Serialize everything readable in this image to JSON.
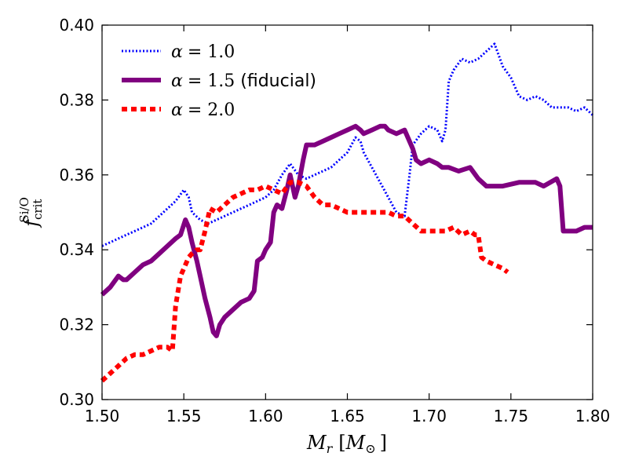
{
  "chart_data": {
    "type": "line",
    "title": "",
    "xlabel": "M_r [M_⊙]",
    "ylabel": "f_crit^Si/O",
    "xlim": [
      1.5,
      1.8
    ],
    "ylim": [
      0.3,
      0.4
    ],
    "xticks": [
      1.5,
      1.55,
      1.6,
      1.65,
      1.7,
      1.75,
      1.8
    ],
    "xtick_labels": [
      "1.50",
      "1.55",
      "1.60",
      "1.65",
      "1.70",
      "1.75",
      "1.80"
    ],
    "yticks": [
      0.3,
      0.32,
      0.34,
      0.36,
      0.38,
      0.4
    ],
    "ytick_labels": [
      "0.30",
      "0.32",
      "0.34",
      "0.36",
      "0.38",
      "0.40"
    ],
    "legend_position": "top-left",
    "grid": false,
    "series": [
      {
        "name": "α = 1.0",
        "color": "#0000ff",
        "style": "dotted",
        "points": [
          [
            1.5,
            0.341
          ],
          [
            1.505,
            0.342
          ],
          [
            1.51,
            0.343
          ],
          [
            1.515,
            0.344
          ],
          [
            1.52,
            0.345
          ],
          [
            1.525,
            0.346
          ],
          [
            1.53,
            0.347
          ],
          [
            1.535,
            0.349
          ],
          [
            1.54,
            0.351
          ],
          [
            1.545,
            0.353
          ],
          [
            1.55,
            0.356
          ],
          [
            1.553,
            0.354
          ],
          [
            1.555,
            0.35
          ],
          [
            1.56,
            0.348
          ],
          [
            1.565,
            0.347
          ],
          [
            1.57,
            0.348
          ],
          [
            1.575,
            0.349
          ],
          [
            1.58,
            0.35
          ],
          [
            1.585,
            0.351
          ],
          [
            1.59,
            0.352
          ],
          [
            1.595,
            0.353
          ],
          [
            1.6,
            0.354
          ],
          [
            1.605,
            0.356
          ],
          [
            1.61,
            0.36
          ],
          [
            1.615,
            0.363
          ],
          [
            1.62,
            0.36
          ],
          [
            1.625,
            0.359
          ],
          [
            1.63,
            0.36
          ],
          [
            1.635,
            0.361
          ],
          [
            1.64,
            0.362
          ],
          [
            1.645,
            0.364
          ],
          [
            1.65,
            0.366
          ],
          [
            1.655,
            0.37
          ],
          [
            1.658,
            0.369
          ],
          [
            1.66,
            0.366
          ],
          [
            1.665,
            0.362
          ],
          [
            1.67,
            0.358
          ],
          [
            1.675,
            0.354
          ],
          [
            1.68,
            0.35
          ],
          [
            1.685,
            0.349
          ],
          [
            1.688,
            0.36
          ],
          [
            1.69,
            0.368
          ],
          [
            1.695,
            0.371
          ],
          [
            1.7,
            0.373
          ],
          [
            1.705,
            0.372
          ],
          [
            1.708,
            0.369
          ],
          [
            1.71,
            0.372
          ],
          [
            1.712,
            0.385
          ],
          [
            1.715,
            0.388
          ],
          [
            1.72,
            0.391
          ],
          [
            1.725,
            0.39
          ],
          [
            1.73,
            0.391
          ],
          [
            1.735,
            0.393
          ],
          [
            1.74,
            0.395
          ],
          [
            1.745,
            0.389
          ],
          [
            1.75,
            0.386
          ],
          [
            1.755,
            0.381
          ],
          [
            1.76,
            0.38
          ],
          [
            1.765,
            0.381
          ],
          [
            1.77,
            0.38
          ],
          [
            1.775,
            0.378
          ],
          [
            1.78,
            0.378
          ],
          [
            1.785,
            0.378
          ],
          [
            1.79,
            0.377
          ],
          [
            1.795,
            0.378
          ],
          [
            1.8,
            0.376
          ]
        ]
      },
      {
        "name": "α = 1.5 (fiducial)",
        "color": "#800080",
        "style": "solid",
        "points": [
          [
            1.5,
            0.328
          ],
          [
            1.505,
            0.33
          ],
          [
            1.51,
            0.333
          ],
          [
            1.513,
            0.332
          ],
          [
            1.515,
            0.332
          ],
          [
            1.52,
            0.334
          ],
          [
            1.525,
            0.336
          ],
          [
            1.53,
            0.337
          ],
          [
            1.535,
            0.339
          ],
          [
            1.54,
            0.341
          ],
          [
            1.545,
            0.343
          ],
          [
            1.548,
            0.344
          ],
          [
            1.551,
            0.348
          ],
          [
            1.553,
            0.346
          ],
          [
            1.555,
            0.342
          ],
          [
            1.558,
            0.337
          ],
          [
            1.56,
            0.333
          ],
          [
            1.563,
            0.327
          ],
          [
            1.566,
            0.322
          ],
          [
            1.568,
            0.318
          ],
          [
            1.57,
            0.317
          ],
          [
            1.572,
            0.32
          ],
          [
            1.575,
            0.322
          ],
          [
            1.58,
            0.324
          ],
          [
            1.585,
            0.326
          ],
          [
            1.59,
            0.327
          ],
          [
            1.593,
            0.329
          ],
          [
            1.595,
            0.337
          ],
          [
            1.598,
            0.338
          ],
          [
            1.6,
            0.34
          ],
          [
            1.603,
            0.342
          ],
          [
            1.605,
            0.35
          ],
          [
            1.607,
            0.352
          ],
          [
            1.61,
            0.351
          ],
          [
            1.613,
            0.356
          ],
          [
            1.615,
            0.36
          ],
          [
            1.618,
            0.354
          ],
          [
            1.62,
            0.357
          ],
          [
            1.623,
            0.364
          ],
          [
            1.625,
            0.368
          ],
          [
            1.63,
            0.368
          ],
          [
            1.635,
            0.369
          ],
          [
            1.64,
            0.37
          ],
          [
            1.645,
            0.371
          ],
          [
            1.65,
            0.372
          ],
          [
            1.655,
            0.373
          ],
          [
            1.658,
            0.372
          ],
          [
            1.66,
            0.371
          ],
          [
            1.665,
            0.372
          ],
          [
            1.67,
            0.373
          ],
          [
            1.673,
            0.373
          ],
          [
            1.675,
            0.372
          ],
          [
            1.68,
            0.371
          ],
          [
            1.685,
            0.372
          ],
          [
            1.69,
            0.367
          ],
          [
            1.692,
            0.364
          ],
          [
            1.695,
            0.363
          ],
          [
            1.7,
            0.364
          ],
          [
            1.705,
            0.363
          ],
          [
            1.708,
            0.362
          ],
          [
            1.712,
            0.362
          ],
          [
            1.718,
            0.361
          ],
          [
            1.725,
            0.362
          ],
          [
            1.73,
            0.359
          ],
          [
            1.735,
            0.357
          ],
          [
            1.745,
            0.357
          ],
          [
            1.755,
            0.358
          ],
          [
            1.765,
            0.358
          ],
          [
            1.77,
            0.357
          ],
          [
            1.778,
            0.359
          ],
          [
            1.78,
            0.357
          ],
          [
            1.782,
            0.345
          ],
          [
            1.79,
            0.345
          ],
          [
            1.795,
            0.346
          ],
          [
            1.8,
            0.346
          ]
        ]
      },
      {
        "name": "α = 2.0",
        "color": "#ff0000",
        "style": "dashed",
        "points": [
          [
            1.5,
            0.305
          ],
          [
            1.505,
            0.307
          ],
          [
            1.51,
            0.309
          ],
          [
            1.515,
            0.311
          ],
          [
            1.52,
            0.312
          ],
          [
            1.525,
            0.312
          ],
          [
            1.53,
            0.313
          ],
          [
            1.535,
            0.314
          ],
          [
            1.54,
            0.314
          ],
          [
            1.543,
            0.313
          ],
          [
            1.545,
            0.325
          ],
          [
            1.548,
            0.333
          ],
          [
            1.55,
            0.335
          ],
          [
            1.553,
            0.338
          ],
          [
            1.555,
            0.339
          ],
          [
            1.558,
            0.34
          ],
          [
            1.56,
            0.34
          ],
          [
            1.563,
            0.345
          ],
          [
            1.566,
            0.351
          ],
          [
            1.57,
            0.35
          ],
          [
            1.575,
            0.352
          ],
          [
            1.58,
            0.354
          ],
          [
            1.585,
            0.355
          ],
          [
            1.59,
            0.356
          ],
          [
            1.595,
            0.356
          ],
          [
            1.6,
            0.357
          ],
          [
            1.605,
            0.356
          ],
          [
            1.61,
            0.355
          ],
          [
            1.615,
            0.358
          ],
          [
            1.62,
            0.358
          ],
          [
            1.625,
            0.357
          ],
          [
            1.63,
            0.354
          ],
          [
            1.635,
            0.352
          ],
          [
            1.64,
            0.352
          ],
          [
            1.645,
            0.351
          ],
          [
            1.65,
            0.35
          ],
          [
            1.655,
            0.35
          ],
          [
            1.66,
            0.35
          ],
          [
            1.665,
            0.35
          ],
          [
            1.67,
            0.35
          ],
          [
            1.675,
            0.35
          ],
          [
            1.68,
            0.349
          ],
          [
            1.685,
            0.349
          ],
          [
            1.69,
            0.347
          ],
          [
            1.695,
            0.345
          ],
          [
            1.7,
            0.345
          ],
          [
            1.705,
            0.345
          ],
          [
            1.71,
            0.345
          ],
          [
            1.715,
            0.346
          ],
          [
            1.72,
            0.344
          ],
          [
            1.725,
            0.345
          ],
          [
            1.728,
            0.344
          ],
          [
            1.73,
            0.344
          ],
          [
            1.732,
            0.338
          ],
          [
            1.735,
            0.337
          ],
          [
            1.74,
            0.336
          ],
          [
            1.745,
            0.335
          ],
          [
            1.748,
            0.334
          ]
        ]
      }
    ]
  },
  "legend": {
    "alpha_symbol": "α",
    "entries": [
      {
        "value": "= 1.0",
        "suffix": ""
      },
      {
        "value": "= 1.5",
        "suffix": " (fiducial)"
      },
      {
        "value": "= 2.0",
        "suffix": ""
      }
    ]
  },
  "axes": {
    "x_symbol": "M",
    "x_sub": "r",
    "x_unit_open": "[",
    "x_unit_sym": "M",
    "x_unit_sub": "⊙",
    "x_unit_close": "]",
    "y_symbol": "f",
    "y_sub": "crit",
    "y_sup": "Si/O"
  }
}
